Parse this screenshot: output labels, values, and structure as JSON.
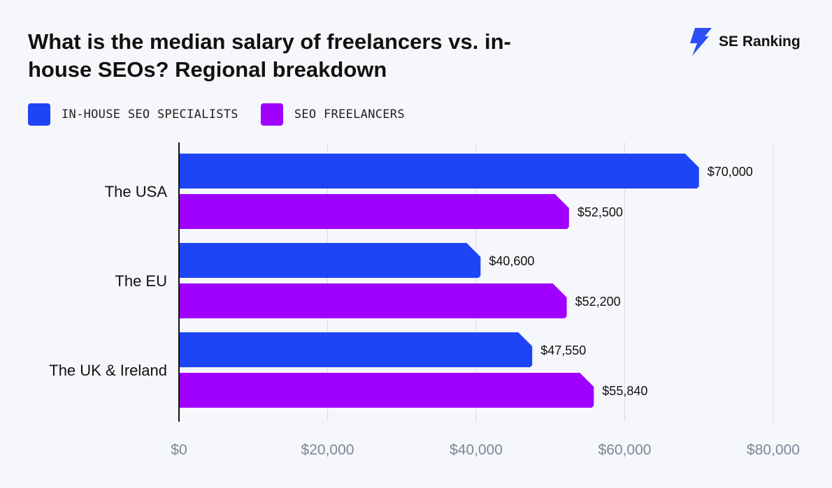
{
  "title": "What is the median salary of freelancers vs. in-house SEOs? Regional breakdown",
  "brand": {
    "name": "SE Ranking",
    "icon": "bolt-logo-icon",
    "color": "#2b4ef5"
  },
  "chart_data": {
    "type": "bar",
    "orientation": "horizontal",
    "categories": [
      "The USA",
      "The EU",
      "The UK & Ireland"
    ],
    "series": [
      {
        "name": "IN-HOUSE SEO SPECIALISTS",
        "color": "#1d45f5",
        "values": [
          70000,
          40600,
          47550
        ],
        "labels": [
          "$70,000",
          "$40,600",
          "$47,550"
        ]
      },
      {
        "name": "SEO FREELANCERS",
        "color": "#a000ff",
        "values": [
          52500,
          52200,
          55840
        ],
        "labels": [
          "$52,500",
          "$52,200",
          "$55,840"
        ]
      }
    ],
    "xlim": [
      0,
      80000
    ],
    "xticks": [
      0,
      20000,
      40000,
      60000,
      80000
    ],
    "xtick_labels": [
      "$0",
      "$20,000",
      "$40,000",
      "$60,000",
      "$80,000"
    ],
    "grid": true,
    "legend": "top-left"
  }
}
